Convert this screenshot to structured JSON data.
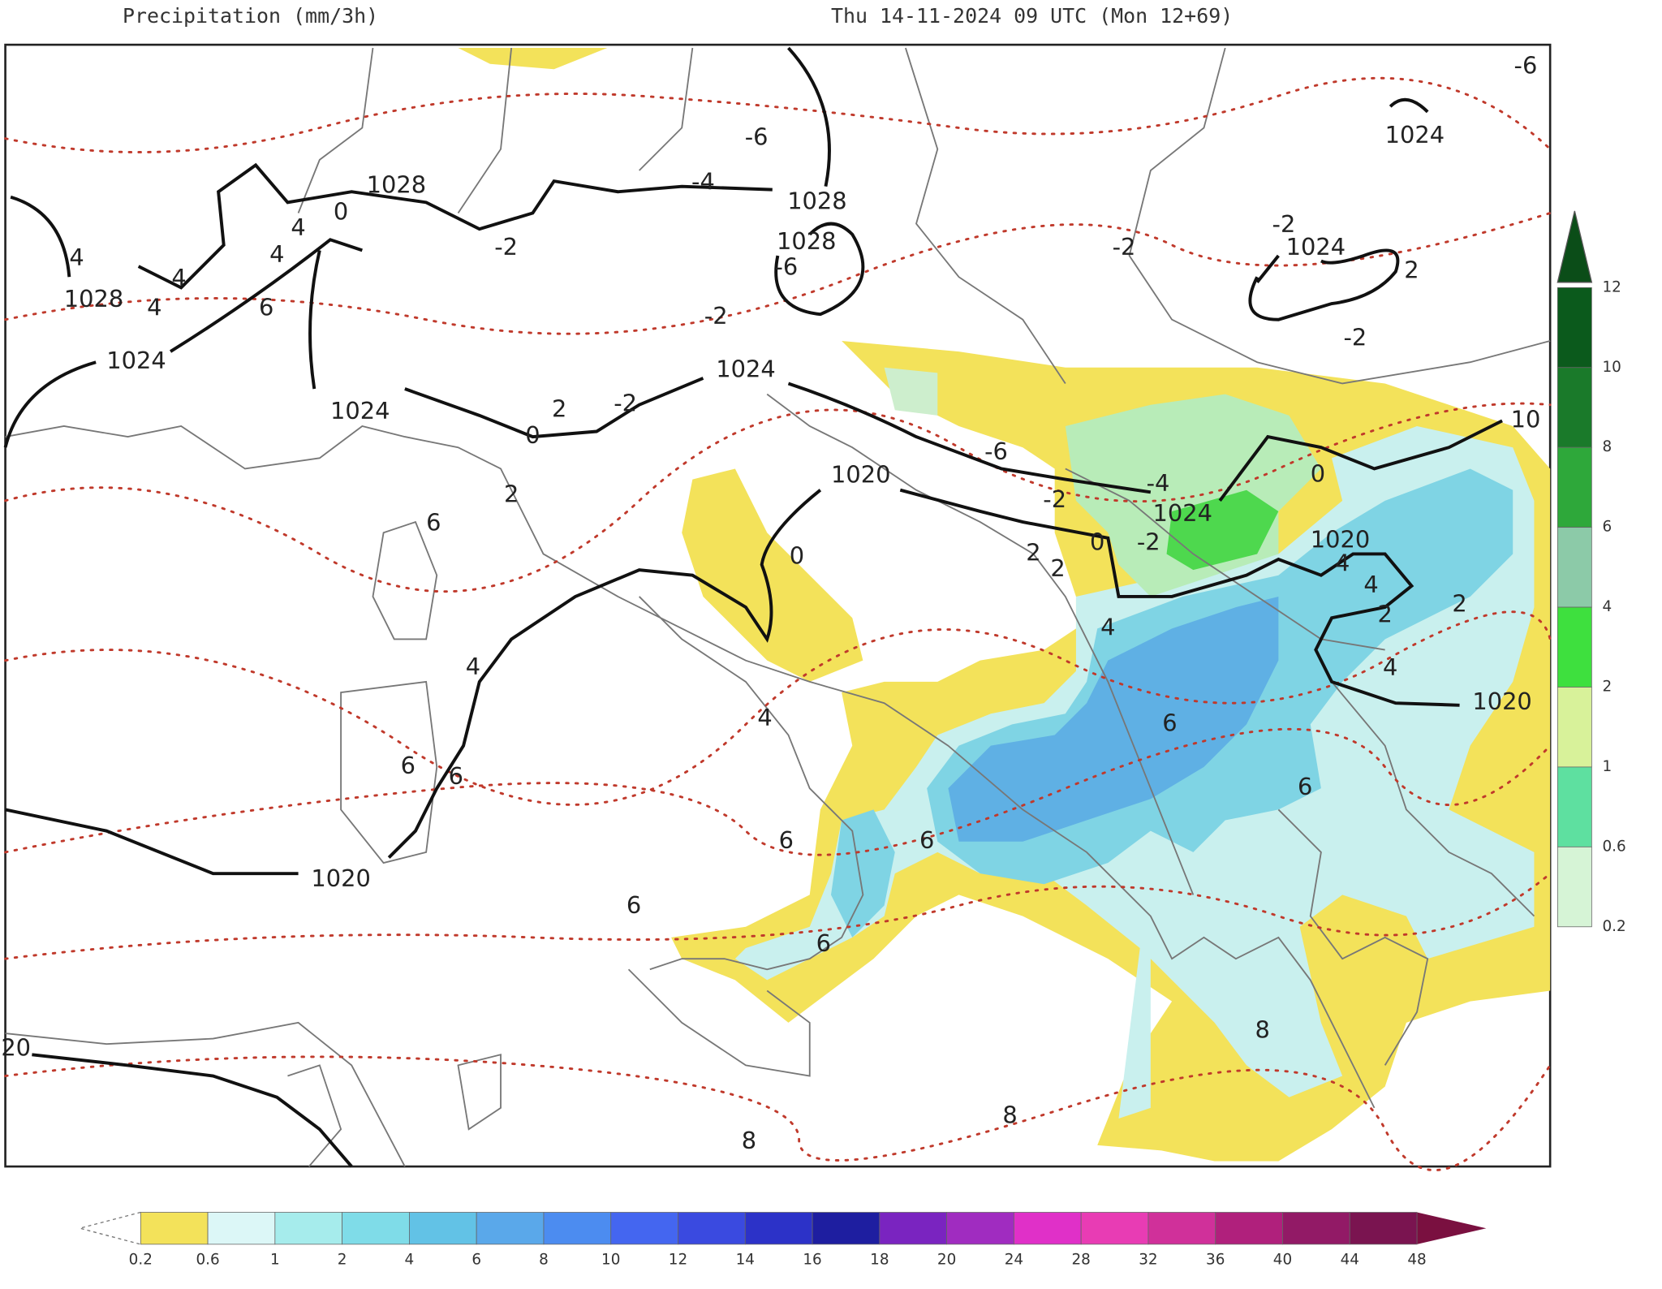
{
  "header": {
    "title": "Precipitation (mm/3h)",
    "valid_time": "Thu 14-11-2024 09 UTC (Mon 12+69)"
  },
  "map_labels": [
    "1028",
    "0",
    "4",
    "4",
    "-2",
    "-4",
    "1028",
    "1028",
    "-6",
    "-6",
    "-6",
    "1024",
    "-2",
    "1024",
    "-2",
    "2",
    "-2",
    "-2",
    "4",
    "1028",
    "4",
    "4",
    "6",
    "1024",
    "1024",
    "1024",
    "2",
    "-2",
    "0",
    "2",
    "6",
    "1020",
    "-6",
    "-4",
    "1024",
    "-2",
    "0",
    "10",
    "1020",
    "-2",
    "0",
    "2",
    "2",
    "0",
    "4",
    "4",
    "2",
    "2",
    "4",
    "4",
    "4",
    "1020",
    "4",
    "6",
    "6",
    "6",
    "6",
    "6",
    "6",
    "1020",
    "6",
    "6",
    "8",
    "20",
    "8",
    "8"
  ],
  "precip_scale": {
    "labels": [
      "0.2",
      "0.6",
      "1",
      "2",
      "4",
      "6",
      "8",
      "10",
      "12",
      "14",
      "16",
      "18",
      "20",
      "24",
      "28",
      "32",
      "36",
      "40",
      "44",
      "48"
    ]
  },
  "snow_scale": {
    "labels": [
      "12",
      "10",
      "8",
      "6",
      "4",
      "2",
      "1",
      "0.6",
      "0.2"
    ]
  }
}
